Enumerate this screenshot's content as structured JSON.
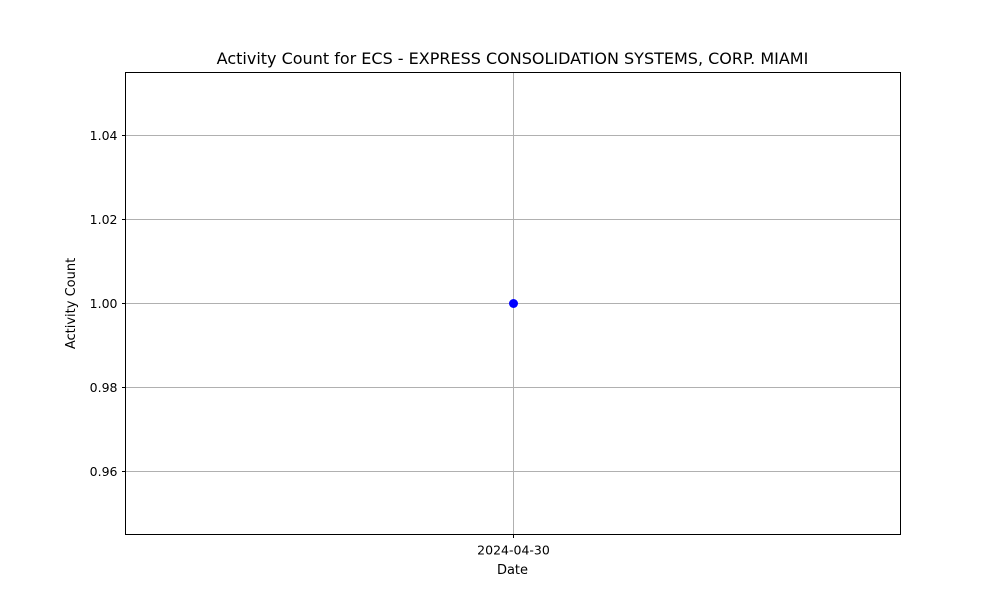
{
  "chart_data": {
    "type": "line",
    "title": "Activity Count for ECS - EXPRESS CONSOLIDATION SYSTEMS, CORP. MIAMI",
    "xlabel": "Date",
    "ylabel": "Activity Count",
    "x_ticks": [
      "2024-04-30"
    ],
    "y_ticks": [
      "0.96",
      "0.98",
      "1.00",
      "1.02",
      "1.04"
    ],
    "ylim": [
      0.945,
      1.055
    ],
    "grid": true,
    "series": [
      {
        "color": "#0000ff",
        "marker": "circle",
        "points": [
          {
            "x": "2024-04-30",
            "y": 1.0
          }
        ]
      }
    ]
  }
}
